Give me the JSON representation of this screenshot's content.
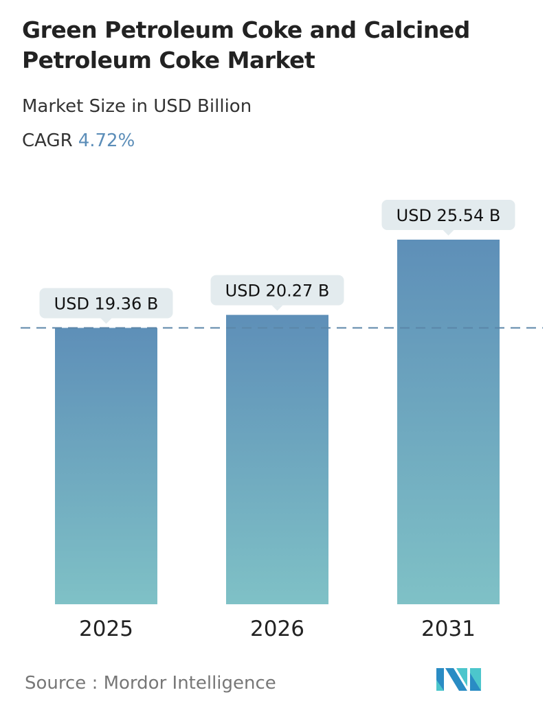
{
  "title": "Green Petroleum Coke and Calcined Petroleum Coke Market",
  "subtitle": "Market Size in USD Billion",
  "cagr_label": "CAGR",
  "cagr_value": "4.72%",
  "source": "Source :  Mordor Intelligence",
  "colors": {
    "bar_top": "#5e8fb8",
    "bar_bottom": "#7fc1c6",
    "label_bg": "#e3ebee",
    "dashed_line": "#5b86a8",
    "cagr": "#5b8db8"
  },
  "chart_data": {
    "type": "bar",
    "categories": [
      "2025",
      "2026",
      "2031"
    ],
    "values": [
      19.36,
      20.27,
      25.54
    ],
    "data_labels": [
      "USD 19.36 B",
      "USD 20.27 B",
      "USD 25.54 B"
    ],
    "reference_line": 19.36,
    "ylim": [
      0,
      25.54
    ],
    "grid": false
  }
}
